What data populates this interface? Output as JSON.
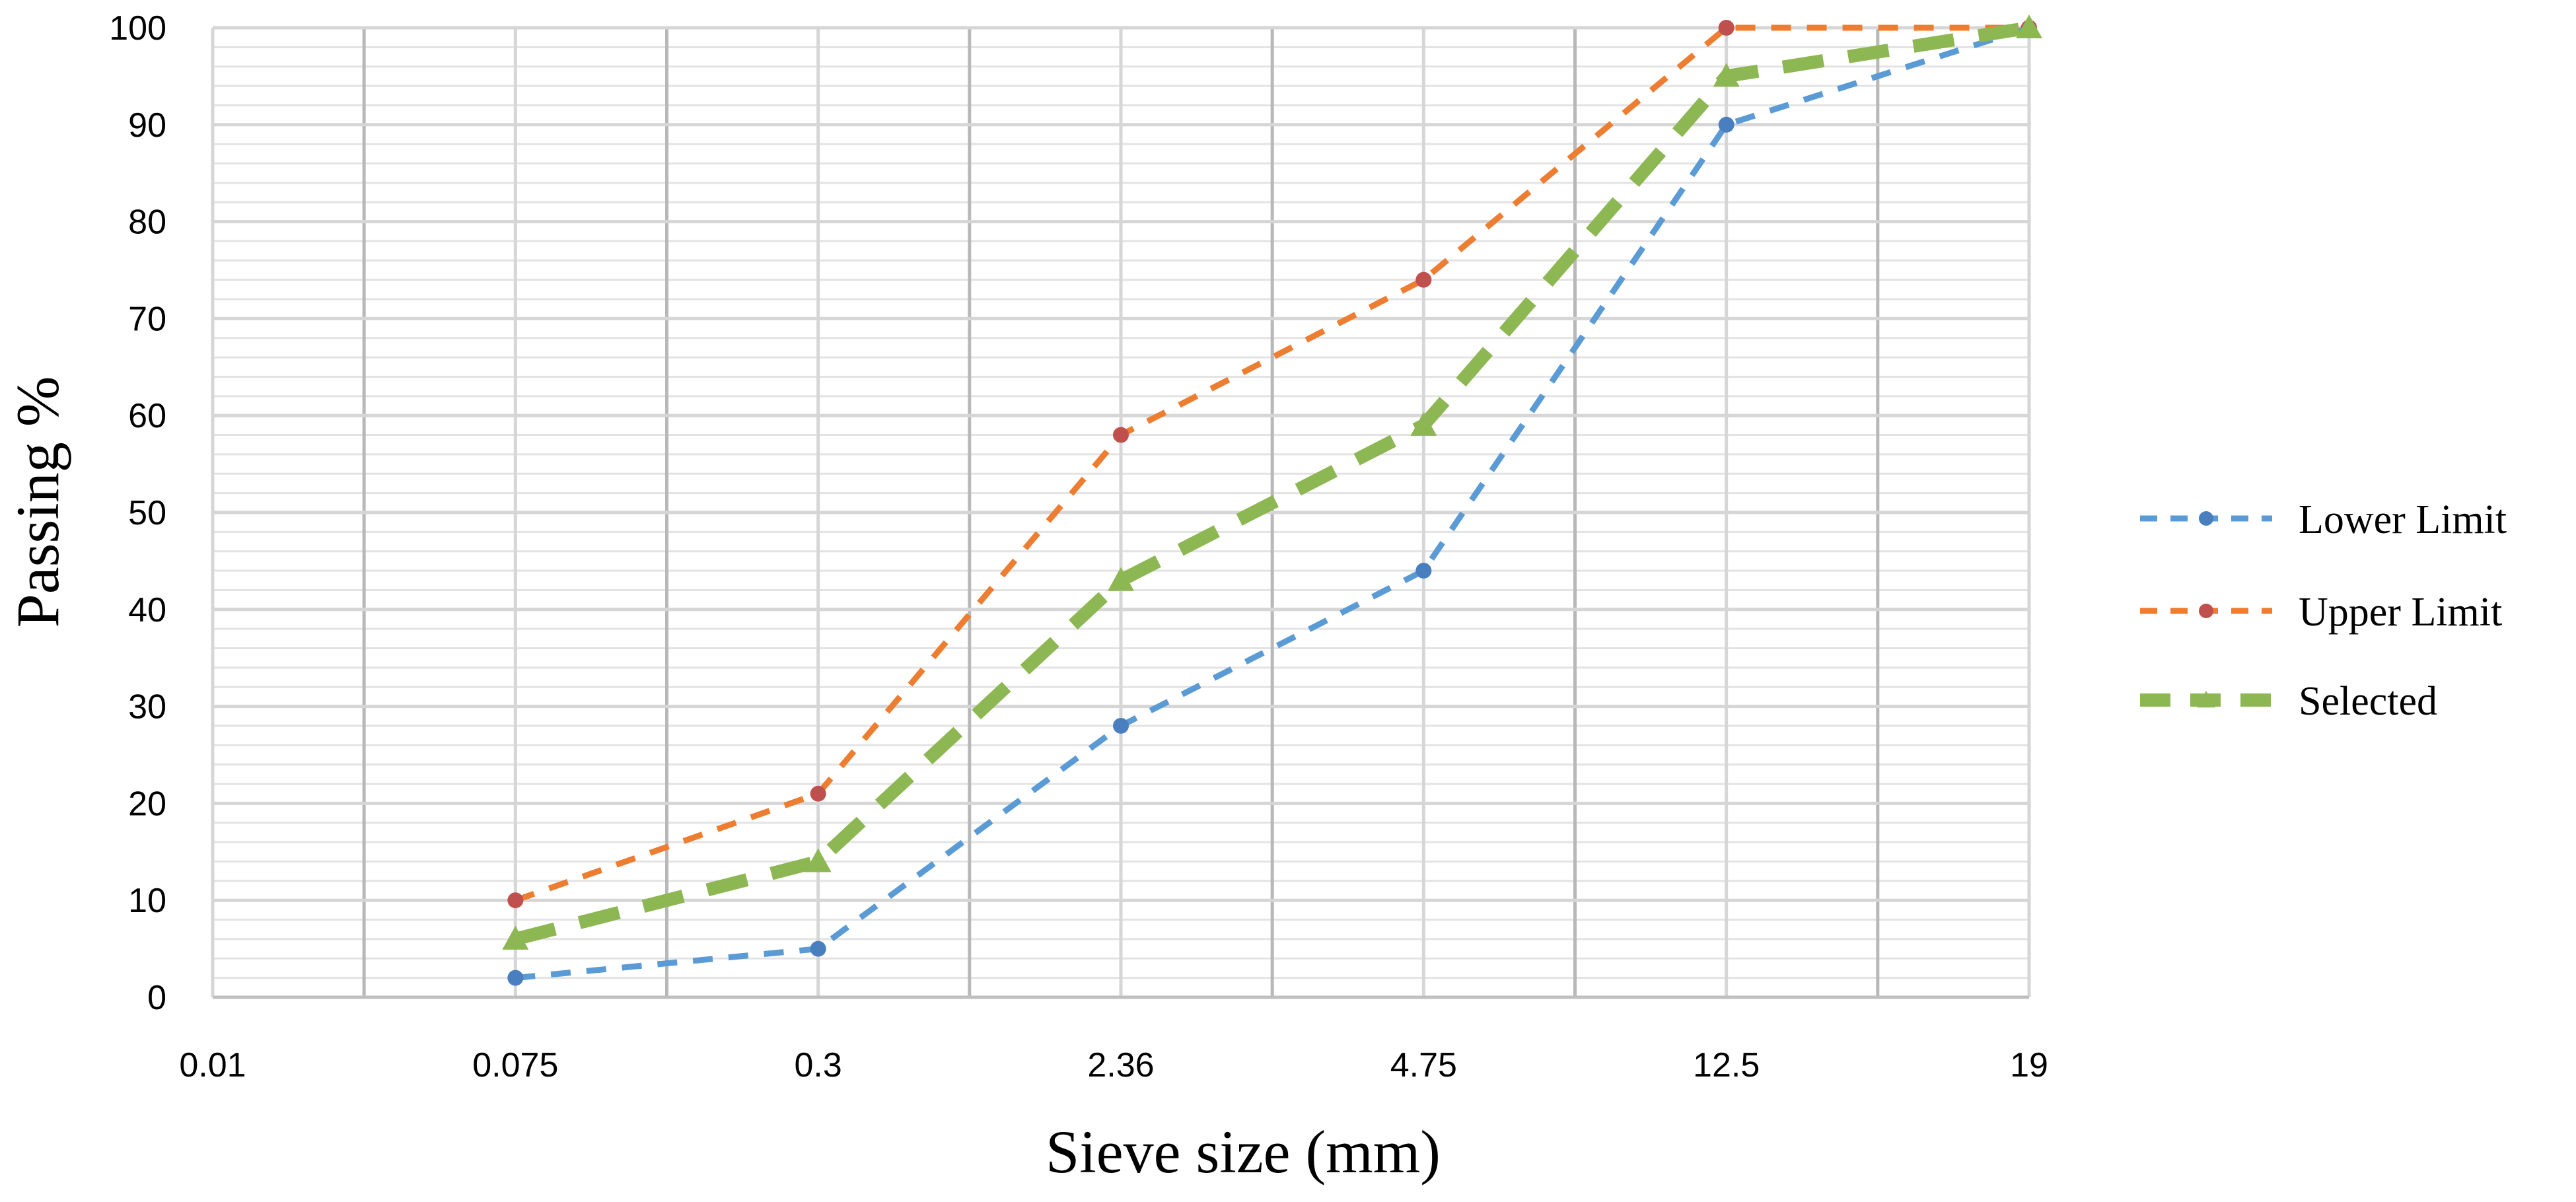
{
  "chart_data": {
    "type": "line",
    "title": "",
    "xlabel": "Sieve size (mm)",
    "ylabel": "Passing %",
    "categories": [
      "0.01",
      "0.075",
      "0.3",
      "2.36",
      "4.75",
      "12.5",
      "19"
    ],
    "ylim": [
      0,
      100
    ],
    "yticks": [
      0,
      10,
      20,
      30,
      40,
      50,
      60,
      70,
      80,
      90,
      100
    ],
    "grid": true,
    "legend_position": "right",
    "series": [
      {
        "name": "Lower Limit",
        "color": "#5B9BD5",
        "marker": "circle",
        "points": [
          {
            "x": "0.075",
            "y": 2
          },
          {
            "x": "0.3",
            "y": 5
          },
          {
            "x": "2.36",
            "y": 28
          },
          {
            "x": "4.75",
            "y": 44
          },
          {
            "x": "12.5",
            "y": 90
          },
          {
            "x": "19",
            "y": 100
          }
        ]
      },
      {
        "name": "Upper Limit",
        "color": "#ED7D31",
        "marker": "circle",
        "points": [
          {
            "x": "0.075",
            "y": 10
          },
          {
            "x": "0.3",
            "y": 21
          },
          {
            "x": "2.36",
            "y": 58
          },
          {
            "x": "4.75",
            "y": 74
          },
          {
            "x": "12.5",
            "y": 100
          },
          {
            "x": "19",
            "y": 100
          }
        ]
      },
      {
        "name": "Selected",
        "color": "#8DB753",
        "marker": "triangle",
        "points": [
          {
            "x": "0.075",
            "y": 6
          },
          {
            "x": "0.3",
            "y": 14
          },
          {
            "x": "2.36",
            "y": 43
          },
          {
            "x": "4.75",
            "y": 59
          },
          {
            "x": "12.5",
            "y": 95
          },
          {
            "x": "19",
            "y": 100
          }
        ]
      }
    ]
  }
}
